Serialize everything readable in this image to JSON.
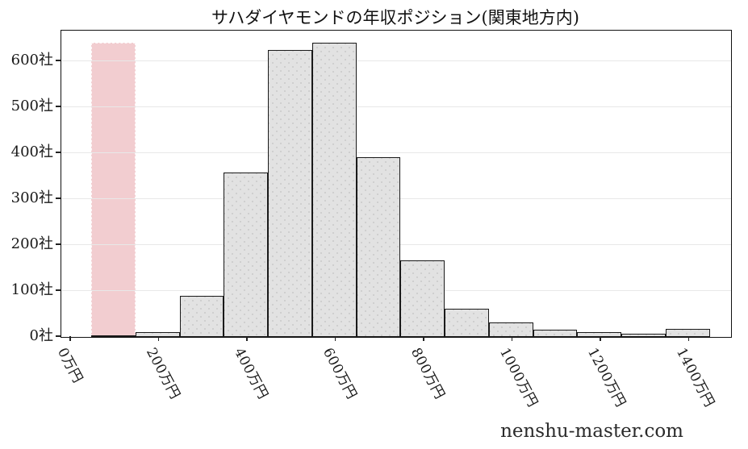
{
  "watermark": "nenshu-master.com",
  "colors": {
    "bar_fill": "#e2e2e2",
    "bar_dot": "#c9c9c9",
    "bar_edge": "#1a1a1a",
    "highlight_fill": "#f2cdd0",
    "grid": "#e8e8e8",
    "axis": "#111111",
    "text": "#1a1a1a"
  },
  "chart_data": {
    "type": "bar",
    "subtype": "histogram",
    "title": "サハダイヤモンドの年収ポジション(関東地方内)",
    "xlabel": "",
    "ylabel": "",
    "unit_x": "万円",
    "unit_y": "社",
    "grid": "horizontal",
    "legend": false,
    "xlim": [
      -22,
      1494
    ],
    "ylim": [
      0,
      667
    ],
    "bins": {
      "start": 46,
      "width": 100
    },
    "values": [
      3,
      10,
      90,
      358,
      625,
      640,
      391,
      166,
      62,
      32,
      16,
      10,
      7,
      17
    ],
    "highlight": {
      "bin_index": 0,
      "top": 641
    },
    "x_ticks": [
      {
        "value": 0,
        "label": "0万円"
      },
      {
        "value": 200,
        "label": "200万円"
      },
      {
        "value": 400,
        "label": "400万円"
      },
      {
        "value": 600,
        "label": "600万円"
      },
      {
        "value": 800,
        "label": "800万円"
      },
      {
        "value": 1000,
        "label": "1000万円"
      },
      {
        "value": 1200,
        "label": "1200万円"
      },
      {
        "value": 1400,
        "label": "1400万円"
      }
    ],
    "y_ticks": [
      {
        "value": 0,
        "label": "0社"
      },
      {
        "value": 100,
        "label": "100社"
      },
      {
        "value": 200,
        "label": "200社"
      },
      {
        "value": 300,
        "label": "300社"
      },
      {
        "value": 400,
        "label": "400社"
      },
      {
        "value": 500,
        "label": "500社"
      },
      {
        "value": 600,
        "label": "600社"
      }
    ]
  }
}
